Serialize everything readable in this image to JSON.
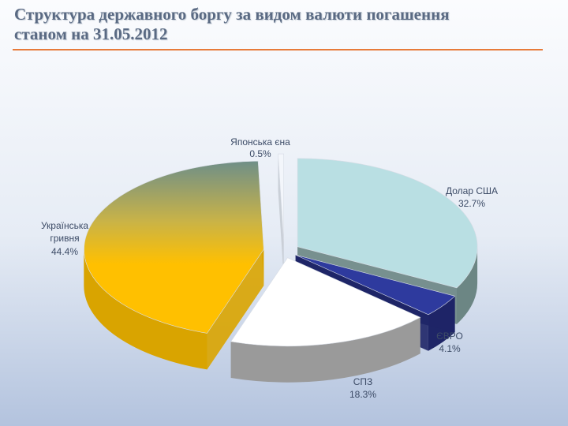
{
  "title_line1": "Структура державного боргу за видом валюти погашення",
  "title_line2": "станом на 31.05.2012",
  "chart_data": {
    "type": "pie",
    "title": "Структура державного боргу за видом валюти погашення станом на 31.05.2012",
    "slices": [
      {
        "name": "Долар США",
        "value": 32.7,
        "label": "32.7%",
        "color": "#b9dfe3"
      },
      {
        "name": "ЄВРО",
        "value": 4.1,
        "label": "4.1%",
        "color": "#2e3a9e"
      },
      {
        "name": "СПЗ",
        "value": 18.3,
        "label": "18.3%",
        "color": "#ffffff"
      },
      {
        "name": "Українська гривня",
        "value": 44.4,
        "label": "44.4%",
        "color": "#ffc000"
      },
      {
        "name": "Японська єна",
        "value": 0.5,
        "label": "0.5%",
        "color": "#f3f6fb"
      }
    ],
    "legend": "none",
    "style": "3d-exploded"
  }
}
